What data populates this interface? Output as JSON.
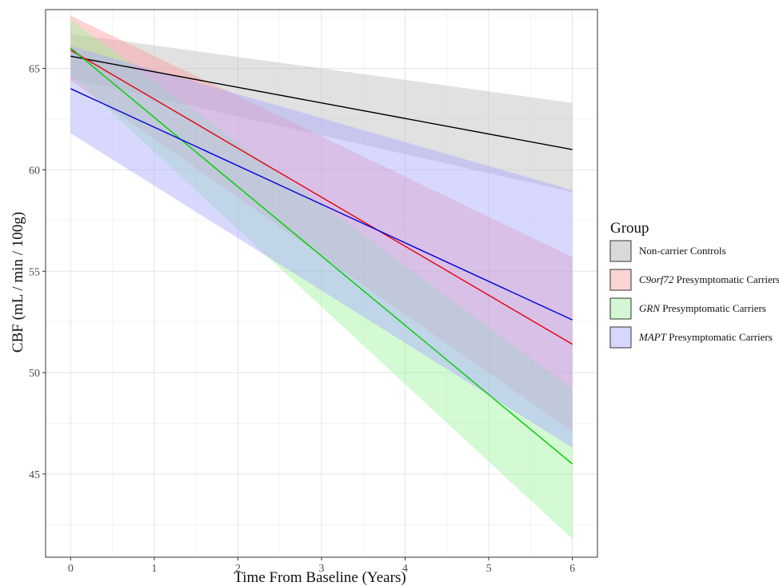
{
  "chart_data": {
    "type": "line",
    "title": "",
    "xlabel": "Time From Baseline (Years)",
    "ylabel": "CBF (mL / min / 100g)",
    "xlim": [
      -0.3,
      6.3
    ],
    "ylim": [
      40.9,
      67.9
    ],
    "x_ticks": [
      0,
      1,
      2,
      3,
      4,
      5,
      6
    ],
    "y_ticks": [
      45,
      50,
      55,
      60,
      65
    ],
    "grid": true,
    "legend_position": "right",
    "legend_title": "Group",
    "series": [
      {
        "name": "Non-carrier Controls",
        "name_italic": "",
        "name_rest": "Non-carrier Controls",
        "line_color": "#000000",
        "band_color": "#bdbdbd",
        "legend_fill": "#d9d9d9",
        "x": [
          0,
          6
        ],
        "y": [
          65.6,
          61.0
        ],
        "ci_lower": [
          64.5,
          58.9
        ],
        "ci_upper": [
          66.7,
          63.3
        ]
      },
      {
        "name": "C9orf72 Presymptomatic Carriers",
        "name_italic": "C9orf72",
        "name_rest": " Presymptomatic Carriers",
        "line_color": "#e8000b",
        "band_color": "#ff9e9e",
        "legend_fill": "#fbd3d3",
        "x": [
          0,
          6
        ],
        "y": [
          65.9,
          51.4
        ],
        "ci_lower": [
          64.4,
          47.1
        ],
        "ci_upper": [
          67.6,
          55.7
        ]
      },
      {
        "name": "GRN Presymptomatic Carriers",
        "name_italic": "GRN",
        "name_rest": " Presymptomatic Carriers",
        "line_color": "#00cc00",
        "band_color": "#9ef59e",
        "legend_fill": "#d2f7d2",
        "x": [
          0,
          6
        ],
        "y": [
          66.0,
          45.5
        ],
        "ci_lower": [
          64.7,
          41.8
        ],
        "ci_upper": [
          67.4,
          49.2
        ]
      },
      {
        "name": "MAPT Presymptomatic Carriers",
        "name_italic": "MAPT",
        "name_rest": " Presymptomatic Carriers",
        "line_color": "#0000dd",
        "band_color": "#a9a9ff",
        "legend_fill": "#d7d7fb",
        "x": [
          0,
          6
        ],
        "y": [
          64.0,
          52.6
        ],
        "ci_lower": [
          61.8,
          46.3
        ],
        "ci_upper": [
          66.1,
          59.0
        ]
      }
    ]
  }
}
